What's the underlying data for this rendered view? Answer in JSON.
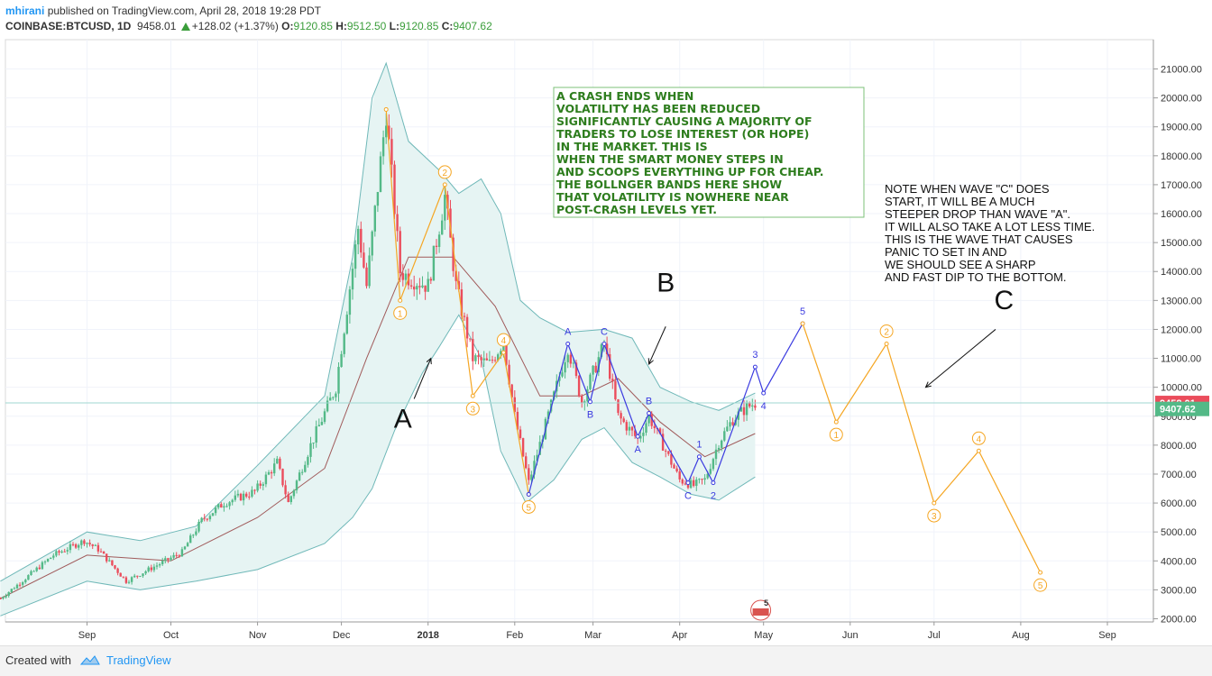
{
  "header": {
    "author": "mhirani",
    "published": "published on TradingView.com, April 28, 2018 19:28 PDT",
    "symbol": "COINBASE:BTCUSD, 1D",
    "last": "9458.01",
    "change": "+128.02 (+1.37%)",
    "o_label": "O:",
    "o_value": "9120.85",
    "h_label": "H:",
    "h_value": "9512.50",
    "l_label": "L:",
    "l_value": "9120.85",
    "c_label": "C:",
    "c_value": "9407.62"
  },
  "colors": {
    "up": "#53b987",
    "down": "#eb4d5c",
    "bb": "#6fb8b8",
    "bb_fill": "#e6f4f3",
    "ma": "#a05a5a",
    "wave_orange": "#f5a623",
    "wave_blue": "#3b3be0",
    "annotation_green": "#2e7d1e"
  },
  "chart_data": {
    "type": "candlestick",
    "title": "COINBASE:BTCUSD, 1D",
    "y_axis": {
      "min": 2000,
      "max": 21000,
      "ticks": [
        "21000.00",
        "20000.00",
        "19000.00",
        "18000.00",
        "17000.00",
        "16000.00",
        "15000.00",
        "14000.00",
        "13000.00",
        "12000.00",
        "11000.00",
        "10000.00",
        "9000.00",
        "8000.00",
        "7000.00",
        "6000.00",
        "5000.00",
        "4000.00",
        "3000.00",
        "2000.00"
      ]
    },
    "x_axis": {
      "labels": [
        "Sep",
        "Oct",
        "Nov",
        "Dec",
        "2018",
        "Feb",
        "Mar",
        "Apr",
        "May",
        "Jun",
        "Jul",
        "Aug",
        "Sep"
      ],
      "bold_labels": [
        "2018"
      ]
    },
    "price_labels": [
      {
        "text": "9458.01",
        "color": "#eb4d5c"
      },
      {
        "text": "9407.62",
        "color": "#53b987"
      }
    ],
    "price_path": [
      {
        "date": "2017-08-01",
        "price": 2700
      },
      {
        "date": "2017-08-10",
        "price": 3400
      },
      {
        "date": "2017-08-20",
        "price": 4200
      },
      {
        "date": "2017-08-31",
        "price": 4700
      },
      {
        "date": "2017-09-05",
        "price": 4400
      },
      {
        "date": "2017-09-15",
        "price": 3300
      },
      {
        "date": "2017-09-25",
        "price": 3800
      },
      {
        "date": "2017-10-05",
        "price": 4300
      },
      {
        "date": "2017-10-12",
        "price": 5400
      },
      {
        "date": "2017-10-20",
        "price": 6000
      },
      {
        "date": "2017-10-31",
        "price": 6400
      },
      {
        "date": "2017-11-08",
        "price": 7400
      },
      {
        "date": "2017-11-12",
        "price": 6000
      },
      {
        "date": "2017-11-20",
        "price": 8000
      },
      {
        "date": "2017-11-29",
        "price": 10000
      },
      {
        "date": "2017-12-07",
        "price": 15500
      },
      {
        "date": "2017-12-10",
        "price": 13500
      },
      {
        "date": "2017-12-17",
        "price": 19500
      },
      {
        "date": "2017-12-22",
        "price": 14000
      },
      {
        "date": "2017-12-25",
        "price": 13800
      },
      {
        "date": "2018-01-01",
        "price": 13500
      },
      {
        "date": "2018-01-07",
        "price": 16600
      },
      {
        "date": "2018-01-11",
        "price": 13500
      },
      {
        "date": "2018-01-17",
        "price": 11000
      },
      {
        "date": "2018-01-23",
        "price": 10800
      },
      {
        "date": "2018-01-28",
        "price": 11600
      },
      {
        "date": "2018-02-01",
        "price": 9000
      },
      {
        "date": "2018-02-06",
        "price": 6700
      },
      {
        "date": "2018-02-12",
        "price": 8700
      },
      {
        "date": "2018-02-20",
        "price": 11400
      },
      {
        "date": "2018-02-25",
        "price": 9500
      },
      {
        "date": "2018-03-05",
        "price": 11500
      },
      {
        "date": "2018-03-10",
        "price": 9000
      },
      {
        "date": "2018-03-17",
        "price": 8200
      },
      {
        "date": "2018-03-21",
        "price": 9000
      },
      {
        "date": "2018-03-27",
        "price": 7800
      },
      {
        "date": "2018-04-01",
        "price": 6800
      },
      {
        "date": "2018-04-06",
        "price": 6600
      },
      {
        "date": "2018-04-10",
        "price": 6800
      },
      {
        "date": "2018-04-15",
        "price": 8100
      },
      {
        "date": "2018-04-20",
        "price": 8900
      },
      {
        "date": "2018-04-25",
        "price": 9300
      },
      {
        "date": "2018-04-28",
        "price": 9458
      }
    ],
    "bollinger_upper": [
      {
        "date": "2017-08-01",
        "price": 3300
      },
      {
        "date": "2017-09-01",
        "price": 5000
      },
      {
        "date": "2017-09-20",
        "price": 4700
      },
      {
        "date": "2017-10-10",
        "price": 5200
      },
      {
        "date": "2017-11-01",
        "price": 7300
      },
      {
        "date": "2017-11-25",
        "price": 9700
      },
      {
        "date": "2017-12-05",
        "price": 14500
      },
      {
        "date": "2017-12-12",
        "price": 20000
      },
      {
        "date": "2017-12-17",
        "price": 21200
      },
      {
        "date": "2017-12-25",
        "price": 18500
      },
      {
        "date": "2018-01-05",
        "price": 17500
      },
      {
        "date": "2018-01-12",
        "price": 16700
      },
      {
        "date": "2018-01-20",
        "price": 17200
      },
      {
        "date": "2018-01-27",
        "price": 16000
      },
      {
        "date": "2018-02-03",
        "price": 13000
      },
      {
        "date": "2018-02-10",
        "price": 12400
      },
      {
        "date": "2018-02-20",
        "price": 11900
      },
      {
        "date": "2018-03-05",
        "price": 12000
      },
      {
        "date": "2018-03-15",
        "price": 11700
      },
      {
        "date": "2018-03-25",
        "price": 10000
      },
      {
        "date": "2018-04-05",
        "price": 9500
      },
      {
        "date": "2018-04-15",
        "price": 9200
      },
      {
        "date": "2018-04-28",
        "price": 9800
      }
    ],
    "bollinger_lower": [
      {
        "date": "2017-08-01",
        "price": 2100
      },
      {
        "date": "2017-09-01",
        "price": 3300
      },
      {
        "date": "2017-09-20",
        "price": 3000
      },
      {
        "date": "2017-10-10",
        "price": 3300
      },
      {
        "date": "2017-11-01",
        "price": 3700
      },
      {
        "date": "2017-11-25",
        "price": 4600
      },
      {
        "date": "2017-12-05",
        "price": 5500
      },
      {
        "date": "2017-12-12",
        "price": 6500
      },
      {
        "date": "2017-12-20",
        "price": 8500
      },
      {
        "date": "2017-12-30",
        "price": 10500
      },
      {
        "date": "2018-01-05",
        "price": 11400
      },
      {
        "date": "2018-01-12",
        "price": 12500
      },
      {
        "date": "2018-01-20",
        "price": 11000
      },
      {
        "date": "2018-01-27",
        "price": 7800
      },
      {
        "date": "2018-02-05",
        "price": 6000
      },
      {
        "date": "2018-02-15",
        "price": 6800
      },
      {
        "date": "2018-02-25",
        "price": 8200
      },
      {
        "date": "2018-03-05",
        "price": 8600
      },
      {
        "date": "2018-03-15",
        "price": 7400
      },
      {
        "date": "2018-03-25",
        "price": 6900
      },
      {
        "date": "2018-04-05",
        "price": 6300
      },
      {
        "date": "2018-04-15",
        "price": 6100
      },
      {
        "date": "2018-04-28",
        "price": 6900
      }
    ],
    "bollinger_basis": [
      {
        "date": "2017-08-01",
        "price": 2700
      },
      {
        "date": "2017-09-01",
        "price": 4200
      },
      {
        "date": "2017-10-01",
        "price": 4000
      },
      {
        "date": "2017-11-01",
        "price": 5500
      },
      {
        "date": "2017-11-25",
        "price": 7200
      },
      {
        "date": "2017-12-10",
        "price": 11000
      },
      {
        "date": "2017-12-25",
        "price": 14500
      },
      {
        "date": "2018-01-10",
        "price": 14500
      },
      {
        "date": "2018-01-25",
        "price": 12800
      },
      {
        "date": "2018-02-10",
        "price": 9700
      },
      {
        "date": "2018-02-25",
        "price": 9700
      },
      {
        "date": "2018-03-10",
        "price": 10300
      },
      {
        "date": "2018-03-25",
        "price": 8800
      },
      {
        "date": "2018-04-10",
        "price": 7600
      },
      {
        "date": "2018-04-28",
        "price": 8400
      }
    ],
    "wave_orange_past": [
      {
        "date": "2017-12-17",
        "price": 19600,
        "label": ""
      },
      {
        "date": "2017-12-22",
        "price": 13000,
        "label": "1"
      },
      {
        "date": "2018-01-07",
        "price": 17000,
        "label": "2"
      },
      {
        "date": "2018-01-17",
        "price": 9700,
        "label": "3"
      },
      {
        "date": "2018-01-28",
        "price": 11200,
        "label": "4"
      },
      {
        "date": "2018-02-06",
        "price": 6300,
        "label": "5"
      }
    ],
    "wave_blue_past": [
      {
        "date": "2018-02-06",
        "price": 6300,
        "label": ""
      },
      {
        "date": "2018-02-20",
        "price": 11500,
        "label": "A"
      },
      {
        "date": "2018-02-28",
        "price": 9500,
        "label": "B"
      },
      {
        "date": "2018-03-05",
        "price": 11500,
        "label": "C"
      },
      {
        "date": "2018-03-17",
        "price": 8300,
        "label": "A"
      },
      {
        "date": "2018-03-21",
        "price": 9100,
        "label": "B"
      },
      {
        "date": "2018-04-04",
        "price": 6700,
        "label": "C"
      },
      {
        "date": "2018-04-08",
        "price": 7600,
        "label": "1"
      },
      {
        "date": "2018-04-13",
        "price": 6700,
        "label": "2"
      },
      {
        "date": "2018-04-28",
        "price": 10700,
        "label": "3"
      },
      {
        "date": "2018-05-01",
        "price": 9800,
        "label": "4"
      },
      {
        "date": "2018-05-15",
        "price": 12200,
        "label": "5"
      }
    ],
    "wave_orange_projection": [
      {
        "date": "2018-05-15",
        "price": 12200,
        "label": ""
      },
      {
        "date": "2018-05-27",
        "price": 8800,
        "label": "1"
      },
      {
        "date": "2018-06-14",
        "price": 11500,
        "label": "2"
      },
      {
        "date": "2018-07-01",
        "price": 6000,
        "label": "3"
      },
      {
        "date": "2018-07-17",
        "price": 7800,
        "label": "4"
      },
      {
        "date": "2018-08-08",
        "price": 3600,
        "label": "5"
      }
    ],
    "abc_labels": [
      {
        "text": "A",
        "date": "2017-12-23",
        "price": 8600
      },
      {
        "text": "B",
        "date": "2018-03-27",
        "price": 13300
      },
      {
        "text": "C",
        "date": "2018-07-26",
        "price": 12700
      }
    ],
    "arrows": [
      {
        "label": "A",
        "from_date": "2017-12-27",
        "from_price": 9600,
        "to_date": "2018-01-02",
        "to_price": 11000
      },
      {
        "label": "B",
        "from_date": "2018-03-27",
        "from_price": 12100,
        "to_date": "2018-03-21",
        "to_price": 10800
      },
      {
        "label": "C",
        "from_date": "2018-07-23",
        "from_price": 12000,
        "to_date": "2018-06-28",
        "to_price": 10000
      }
    ],
    "annotation_box": {
      "lines": [
        "A CRASH ENDS WHEN",
        "VOLATILITY HAS BEEN REDUCED",
        "SIGNIFICANTLY CAUSING A MAJORITY OF",
        "TRADERS TO LOSE INTEREST (OR HOPE)",
        "IN THE MARKET. THIS IS",
        "WHEN THE SMART MONEY STEPS IN",
        "AND SCOOPS EVERYTHING UP FOR CHEAP.",
        "THE BOLLNGER BANDS HERE SHOW",
        "THAT VOLATILITY IS NOWHERE NEAR",
        "POST-CRASH LEVELS YET."
      ]
    },
    "note_text": {
      "lines": [
        "NOTE WHEN WAVE \"C\" DOES",
        "START, IT WILL BE A MUCH",
        "STEEPER DROP THAN WAVE \"A\".",
        "IT WILL ALSO TAKE A LOT LESS TIME.",
        "THIS IS THE WAVE THAT CAUSES",
        "PANIC TO SET IN AND",
        "WE SHOULD SEE A SHARP",
        "AND FAST DIP TO THE BOTTOM."
      ]
    },
    "event_badge": "5"
  },
  "footer": {
    "created_with": "Created with",
    "brand": "TradingView"
  }
}
